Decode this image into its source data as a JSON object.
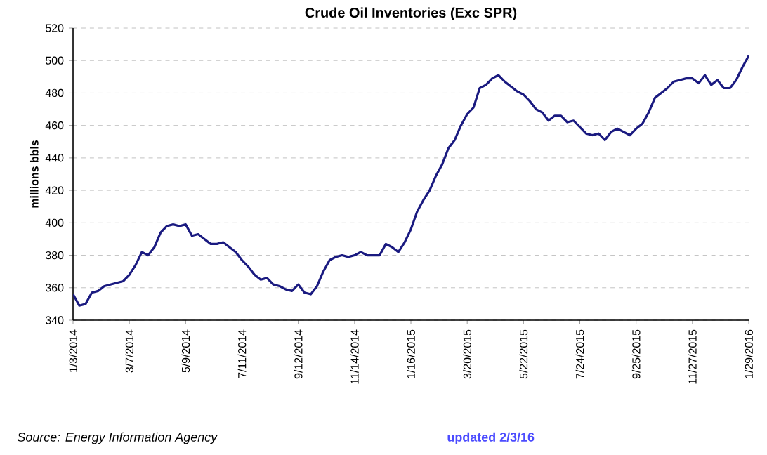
{
  "chart_data": {
    "type": "line",
    "title": "Crude Oil Inventories (Exc SPR)",
    "ylabel": "millions bbls",
    "categories": [
      "1/3/2014",
      null,
      null,
      null,
      null,
      null,
      null,
      null,
      null,
      "3/7/2014",
      null,
      null,
      null,
      null,
      null,
      null,
      null,
      null,
      "5/9/2014",
      null,
      null,
      null,
      null,
      null,
      null,
      null,
      null,
      "7/11/2014",
      null,
      null,
      null,
      null,
      null,
      null,
      null,
      null,
      "9/12/2014",
      null,
      null,
      null,
      null,
      null,
      null,
      null,
      null,
      "11/14/2014",
      null,
      null,
      null,
      null,
      null,
      null,
      null,
      null,
      "1/16/2015",
      null,
      null,
      null,
      null,
      null,
      null,
      null,
      null,
      "3/20/2015",
      null,
      null,
      null,
      null,
      null,
      null,
      null,
      null,
      "5/22/2015",
      null,
      null,
      null,
      null,
      null,
      null,
      null,
      null,
      "7/24/2015",
      null,
      null,
      null,
      null,
      null,
      null,
      null,
      null,
      "9/25/2015",
      null,
      null,
      null,
      null,
      null,
      null,
      null,
      null,
      "11/27/2015",
      null,
      null,
      null,
      null,
      null,
      null,
      null,
      null,
      "1/29/2016"
    ],
    "series": [
      {
        "color": "#1a1a80",
        "values": [
          356,
          349,
          350,
          357,
          358,
          361,
          362,
          363,
          364,
          368,
          374,
          382,
          380,
          385,
          394,
          398,
          399,
          398,
          399,
          392,
          393,
          390,
          387,
          387,
          388,
          385,
          382,
          377,
          373,
          368,
          365,
          366,
          362,
          361,
          359,
          358,
          362,
          357,
          356,
          361,
          370,
          377,
          379,
          380,
          379,
          380,
          382,
          380,
          380,
          380,
          387,
          385,
          382,
          388,
          396,
          407,
          414,
          420,
          429,
          436,
          446,
          451,
          460,
          467,
          471,
          483,
          485,
          489,
          491,
          487,
          484,
          481,
          479,
          475,
          470,
          468,
          463,
          466,
          466,
          462,
          463,
          459,
          455,
          454,
          455,
          451,
          456,
          458,
          456,
          454,
          458,
          461,
          468,
          477,
          480,
          483,
          487,
          488,
          489,
          489,
          486,
          491,
          485,
          488,
          483,
          483,
          488,
          496,
          503
        ]
      }
    ],
    "ylim": [
      340,
      520
    ],
    "yticks": [
      340,
      360,
      380,
      400,
      420,
      440,
      460,
      480,
      500,
      520
    ],
    "grid": "y",
    "annotations": [
      "Source: Energy Information Agency",
      "updated 2/3/16"
    ]
  }
}
